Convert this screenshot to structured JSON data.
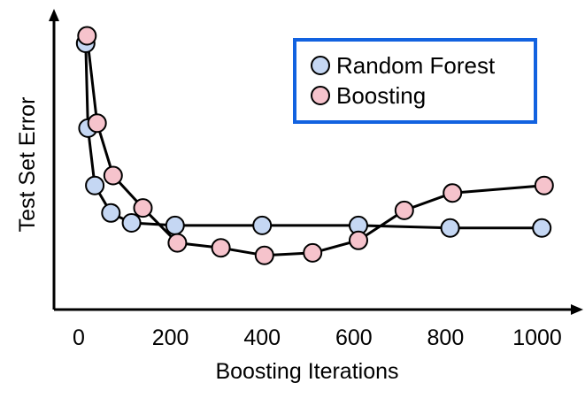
{
  "chart_data": {
    "type": "line",
    "xlabel": "Boosting Iterations",
    "ylabel": "Test Set Error",
    "xlim": [
      0,
      1000
    ],
    "x_ticks": [
      "0",
      "200",
      "400",
      "600",
      "800",
      "1000"
    ],
    "y_ticks_shown": false,
    "grid": false,
    "legend_position": "top-right",
    "series": [
      {
        "name": "Random Forest",
        "color": "#c5d7f3",
        "x": [
          15,
          20,
          35,
          70,
          115,
          210,
          400,
          610,
          810,
          1010
        ],
        "y": [
          1.0,
          0.66,
          0.43,
          0.32,
          0.28,
          0.27,
          0.27,
          0.27,
          0.26,
          0.26
        ]
      },
      {
        "name": "Boosting",
        "color": "#f6c3cc",
        "x": [
          18,
          40,
          75,
          140,
          215,
          310,
          405,
          510,
          610,
          710,
          815,
          1015
        ],
        "y": [
          1.03,
          0.68,
          0.47,
          0.34,
          0.2,
          0.18,
          0.15,
          0.16,
          0.21,
          0.33,
          0.4,
          0.43
        ]
      }
    ]
  }
}
